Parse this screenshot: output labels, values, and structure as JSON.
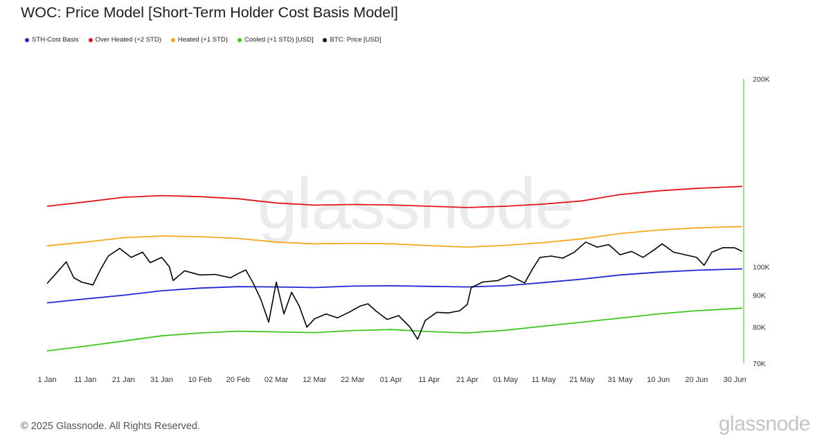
{
  "title": "WOC: Price Model [Short-Term Holder Cost Basis Model]",
  "footer": {
    "copyright": "© 2025 Glassnode. All Rights Reserved.",
    "brand": "glassnode"
  },
  "watermark": "glassnode",
  "chart_data": {
    "type": "line",
    "title": "WOC: Price Model [Short-Term Holder Cost Basis Model]",
    "x_axis": {
      "type": "date",
      "range": [
        "2025-01-01",
        "2025-07-02"
      ],
      "tick_labels": [
        "1 Jan",
        "11 Jan",
        "21 Jan",
        "31 Jan",
        "10 Feb",
        "20 Feb",
        "02 Mar",
        "12 Mar",
        "22 Mar",
        "01 Apr",
        "11 Apr",
        "21 Apr",
        "01 May",
        "11 May",
        "21 May",
        "31 May",
        "10 Jun",
        "20 Jun",
        "30 Jun"
      ],
      "tick_dates": [
        "2025-01-01",
        "2025-01-11",
        "2025-01-21",
        "2025-01-31",
        "2025-02-10",
        "2025-02-20",
        "2025-03-02",
        "2025-03-12",
        "2025-03-22",
        "2025-04-01",
        "2025-04-11",
        "2025-04-21",
        "2025-05-01",
        "2025-05-11",
        "2025-05-21",
        "2025-05-31",
        "2025-06-10",
        "2025-06-20",
        "2025-06-30"
      ]
    },
    "y_axis": {
      "scale": "log",
      "range": [
        70000,
        200000
      ],
      "tick_values": [
        70000,
        80000,
        90000,
        100000,
        200000
      ],
      "tick_labels": [
        "70K",
        "80K",
        "90K",
        "100K",
        "200K"
      ],
      "position": "right"
    },
    "grid": false,
    "legend": {
      "placement": "top-left"
    },
    "series": [
      {
        "name": "STH-Cost Basis",
        "color": "#1f24d4",
        "points": [
          [
            "2025-01-01",
            87500
          ],
          [
            "2025-01-11",
            88800
          ],
          [
            "2025-01-21",
            90000
          ],
          [
            "2025-01-31",
            91500
          ],
          [
            "2025-02-10",
            92400
          ],
          [
            "2025-02-20",
            92900
          ],
          [
            "2025-03-02",
            92800
          ],
          [
            "2025-03-12",
            92600
          ],
          [
            "2025-03-22",
            93100
          ],
          [
            "2025-04-01",
            93200
          ],
          [
            "2025-04-11",
            93000
          ],
          [
            "2025-04-21",
            92800
          ],
          [
            "2025-05-01",
            93200
          ],
          [
            "2025-05-11",
            94300
          ],
          [
            "2025-05-21",
            95500
          ],
          [
            "2025-05-31",
            97000
          ],
          [
            "2025-06-10",
            98000
          ],
          [
            "2025-06-20",
            98700
          ],
          [
            "2025-07-02",
            99200
          ]
        ]
      },
      {
        "name": "Over Heated (+2 STD)",
        "color": "#e3141b",
        "points": [
          [
            "2025-01-01",
            125000
          ],
          [
            "2025-01-11",
            127000
          ],
          [
            "2025-01-21",
            129200
          ],
          [
            "2025-01-31",
            130000
          ],
          [
            "2025-02-10",
            129500
          ],
          [
            "2025-02-20",
            128500
          ],
          [
            "2025-03-02",
            126500
          ],
          [
            "2025-03-12",
            125500
          ],
          [
            "2025-03-22",
            125800
          ],
          [
            "2025-04-01",
            125600
          ],
          [
            "2025-04-11",
            125000
          ],
          [
            "2025-04-21",
            124400
          ],
          [
            "2025-05-01",
            125000
          ],
          [
            "2025-05-11",
            126000
          ],
          [
            "2025-05-21",
            127500
          ],
          [
            "2025-05-31",
            130500
          ],
          [
            "2025-06-10",
            132300
          ],
          [
            "2025-06-20",
            133500
          ],
          [
            "2025-07-02",
            134500
          ]
        ]
      },
      {
        "name": "Heated (+1 STD)",
        "color": "#f4a91b",
        "points": [
          [
            "2025-01-01",
            108000
          ],
          [
            "2025-01-11",
            109500
          ],
          [
            "2025-01-21",
            111300
          ],
          [
            "2025-01-31",
            112000
          ],
          [
            "2025-02-10",
            111700
          ],
          [
            "2025-02-20",
            111000
          ],
          [
            "2025-03-02",
            109500
          ],
          [
            "2025-03-12",
            108800
          ],
          [
            "2025-03-22",
            109000
          ],
          [
            "2025-04-01",
            108800
          ],
          [
            "2025-04-11",
            108100
          ],
          [
            "2025-04-21",
            107500
          ],
          [
            "2025-05-01",
            108200
          ],
          [
            "2025-05-11",
            109300
          ],
          [
            "2025-05-21",
            110800
          ],
          [
            "2025-05-31",
            113000
          ],
          [
            "2025-06-10",
            114500
          ],
          [
            "2025-06-20",
            115400
          ],
          [
            "2025-07-02",
            116000
          ]
        ]
      },
      {
        "name": "Cooled (+1 STD) [USD]",
        "color": "#3ec61d",
        "points": [
          [
            "2025-01-01",
            73300
          ],
          [
            "2025-01-11",
            74600
          ],
          [
            "2025-01-21",
            76000
          ],
          [
            "2025-01-31",
            77500
          ],
          [
            "2025-02-10",
            78300
          ],
          [
            "2025-02-20",
            78800
          ],
          [
            "2025-03-02",
            78600
          ],
          [
            "2025-03-12",
            78400
          ],
          [
            "2025-03-22",
            79000
          ],
          [
            "2025-04-01",
            79300
          ],
          [
            "2025-04-11",
            78700
          ],
          [
            "2025-04-21",
            78300
          ],
          [
            "2025-05-01",
            79100
          ],
          [
            "2025-05-11",
            80300
          ],
          [
            "2025-05-21",
            81500
          ],
          [
            "2025-05-31",
            82700
          ],
          [
            "2025-06-10",
            84000
          ],
          [
            "2025-06-20",
            85000
          ],
          [
            "2025-07-02",
            85800
          ]
        ]
      },
      {
        "name": "BTC: Price [USD]",
        "color": "#000000",
        "points": [
          [
            "2025-01-01",
            94000
          ],
          [
            "2025-01-03",
            97000
          ],
          [
            "2025-01-06",
            101800
          ],
          [
            "2025-01-08",
            96000
          ],
          [
            "2025-01-10",
            94500
          ],
          [
            "2025-01-13",
            93500
          ],
          [
            "2025-01-15",
            99000
          ],
          [
            "2025-01-17",
            104000
          ],
          [
            "2025-01-20",
            107000
          ],
          [
            "2025-01-23",
            103500
          ],
          [
            "2025-01-26",
            105500
          ],
          [
            "2025-01-28",
            101500
          ],
          [
            "2025-01-31",
            103500
          ],
          [
            "2025-02-02",
            100000
          ],
          [
            "2025-02-03",
            95000
          ],
          [
            "2025-02-06",
            98500
          ],
          [
            "2025-02-10",
            97000
          ],
          [
            "2025-02-14",
            97200
          ],
          [
            "2025-02-18",
            96000
          ],
          [
            "2025-02-20",
            97500
          ],
          [
            "2025-02-22",
            98800
          ],
          [
            "2025-02-24",
            94000
          ],
          [
            "2025-02-26",
            88500
          ],
          [
            "2025-02-28",
            81500
          ],
          [
            "2025-03-02",
            94500
          ],
          [
            "2025-03-04",
            84000
          ],
          [
            "2025-03-06",
            91000
          ],
          [
            "2025-03-08",
            86500
          ],
          [
            "2025-03-10",
            80000
          ],
          [
            "2025-03-12",
            82500
          ],
          [
            "2025-03-15",
            84000
          ],
          [
            "2025-03-18",
            82800
          ],
          [
            "2025-03-21",
            84500
          ],
          [
            "2025-03-24",
            86500
          ],
          [
            "2025-03-26",
            87200
          ],
          [
            "2025-03-28",
            85000
          ],
          [
            "2025-03-31",
            82300
          ],
          [
            "2025-04-03",
            83500
          ],
          [
            "2025-04-06",
            80000
          ],
          [
            "2025-04-08",
            76500
          ],
          [
            "2025-04-10",
            82000
          ],
          [
            "2025-04-13",
            84500
          ],
          [
            "2025-04-16",
            84300
          ],
          [
            "2025-04-19",
            85000
          ],
          [
            "2025-04-21",
            87000
          ],
          [
            "2025-04-22",
            92500
          ],
          [
            "2025-04-25",
            94500
          ],
          [
            "2025-04-29",
            95000
          ],
          [
            "2025-05-02",
            96800
          ],
          [
            "2025-05-06",
            94200
          ],
          [
            "2025-05-08",
            99000
          ],
          [
            "2025-05-10",
            103500
          ],
          [
            "2025-05-13",
            104000
          ],
          [
            "2025-05-16",
            103200
          ],
          [
            "2025-05-19",
            105500
          ],
          [
            "2025-05-22",
            109500
          ],
          [
            "2025-05-25",
            107500
          ],
          [
            "2025-05-28",
            108500
          ],
          [
            "2025-05-31",
            104500
          ],
          [
            "2025-06-03",
            105800
          ],
          [
            "2025-06-06",
            103500
          ],
          [
            "2025-06-09",
            106500
          ],
          [
            "2025-06-11",
            108800
          ],
          [
            "2025-06-14",
            105500
          ],
          [
            "2025-06-17",
            104500
          ],
          [
            "2025-06-20",
            103500
          ],
          [
            "2025-06-22",
            100500
          ],
          [
            "2025-06-24",
            105500
          ],
          [
            "2025-06-27",
            107300
          ],
          [
            "2025-06-30",
            107200
          ],
          [
            "2025-07-02",
            105800
          ]
        ]
      }
    ]
  }
}
